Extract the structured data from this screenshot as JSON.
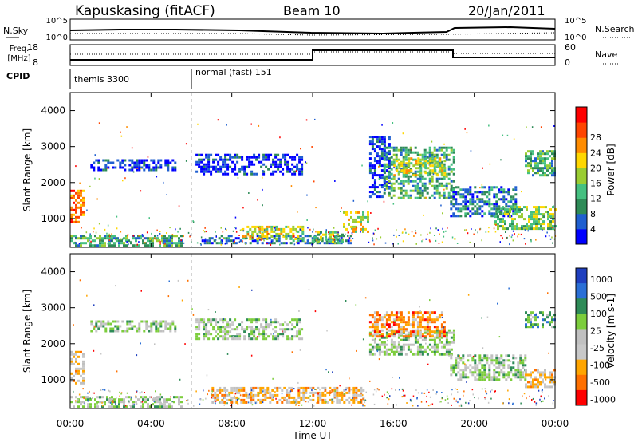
{
  "header": {
    "station": "Kapuskasing (fitACF)",
    "beam": "Beam 10",
    "date": "20/Jan/2011"
  },
  "sky_panel": {
    "left_label": "N.Sky",
    "right_label": "N.Search",
    "left_ticks": [
      "10^5",
      "10^0"
    ],
    "right_ticks": [
      "10^5",
      "10^0"
    ]
  },
  "freq_panel": {
    "left_label_1": "Freq.",
    "left_label_2": "[MHz]",
    "right_label": "Nave",
    "left_ticks": [
      "18",
      "8"
    ],
    "right_ticks": [
      "60",
      "0"
    ]
  },
  "cpid_panel": {
    "label": "CPID",
    "segments": [
      {
        "label": "themis 3300",
        "start_hour": 0,
        "end_hour": 6
      },
      {
        "label": "normal (fast) 151",
        "start_hour": 6,
        "end_hour": 24
      }
    ]
  },
  "colors": {
    "power_scale": [
      "#0000ff",
      "#1f5fd0",
      "#2e8b57",
      "#45c080",
      "#9acd32",
      "#ffd700",
      "#ff8c00",
      "#ff4500",
      "#ff0000"
    ],
    "velocity_scale": [
      "#1f3fbf",
      "#2a6fd6",
      "#2e8b57",
      "#7ccd3c",
      "#c0c0c0",
      "#c8c8c8",
      "#ffa500",
      "#ff7000",
      "#ff0000"
    ]
  },
  "chart_data": [
    {
      "type": "heatmap",
      "title": "Power",
      "xlabel": "Time UT",
      "ylabel": "Slant Range [km]",
      "colorbar_label": "Power [dB]",
      "xlim": [
        0,
        24
      ],
      "ylim": [
        200,
        4500
      ],
      "x_ticks": [
        "00:00",
        "04:00",
        "08:00",
        "12:00",
        "16:00",
        "20:00",
        "00:00"
      ],
      "y_ticks": [
        "1000",
        "2000",
        "3000",
        "4000"
      ],
      "colorbar_ticks": [
        "4",
        "8",
        "12",
        "16",
        "20",
        "24",
        "28"
      ],
      "regions": [
        {
          "t0": 0.0,
          "t1": 0.6,
          "r0": 900,
          "r1": 1800,
          "level": 7
        },
        {
          "t0": 0.0,
          "t1": 5.5,
          "r0": 250,
          "r1": 550,
          "level": 3
        },
        {
          "t0": 1.0,
          "t1": 5.2,
          "r0": 2350,
          "r1": 2650,
          "level": 1
        },
        {
          "t0": 6.2,
          "t1": 11.5,
          "r0": 2250,
          "r1": 2800,
          "level": 1
        },
        {
          "t0": 6.5,
          "t1": 14.0,
          "r0": 300,
          "r1": 550,
          "level": 2
        },
        {
          "t0": 8.5,
          "t1": 11.5,
          "r0": 450,
          "r1": 800,
          "level": 5
        },
        {
          "t0": 12.0,
          "t1": 13.5,
          "r0": 350,
          "r1": 650,
          "level": 4
        },
        {
          "t0": 13.5,
          "t1": 14.8,
          "r0": 650,
          "r1": 1200,
          "level": 5
        },
        {
          "t0": 14.8,
          "t1": 15.8,
          "r0": 1600,
          "r1": 3300,
          "level": 1
        },
        {
          "t0": 15.5,
          "t1": 19.0,
          "r0": 1600,
          "r1": 3000,
          "level": 3
        },
        {
          "t0": 16.0,
          "t1": 18.5,
          "r0": 2200,
          "r1": 2700,
          "level": 5
        },
        {
          "t0": 18.8,
          "t1": 22.0,
          "r0": 1100,
          "r1": 1900,
          "level": 2
        },
        {
          "t0": 21.0,
          "t1": 24.0,
          "r0": 750,
          "r1": 1350,
          "level": 4
        },
        {
          "t0": 22.5,
          "t1": 24.0,
          "r0": 2200,
          "r1": 2900,
          "level": 3
        }
      ]
    },
    {
      "type": "heatmap",
      "title": "Velocity",
      "xlabel": "Time UT",
      "ylabel": "Slant Range [km]",
      "colorbar_label": "Velocity [m s-1]",
      "xlim": [
        0,
        24
      ],
      "ylim": [
        200,
        4500
      ],
      "x_ticks": [
        "00:00",
        "04:00",
        "08:00",
        "12:00",
        "16:00",
        "20:00",
        "00:00"
      ],
      "y_ticks": [
        "1000",
        "2000",
        "3000",
        "4000"
      ],
      "colorbar_ticks": [
        "1000",
        "500",
        "100",
        "25",
        "-25",
        "-100",
        "-500",
        "-1000"
      ],
      "regions": [
        {
          "t0": 0.0,
          "t1": 0.6,
          "r0": 900,
          "r1": 1800,
          "level": 6
        },
        {
          "t0": 0.0,
          "t1": 5.5,
          "r0": 250,
          "r1": 550,
          "level": 4
        },
        {
          "t0": 1.0,
          "t1": 5.2,
          "r0": 2350,
          "r1": 2650,
          "level": 4
        },
        {
          "t0": 6.2,
          "t1": 11.5,
          "r0": 2150,
          "r1": 2700,
          "level": 4
        },
        {
          "t0": 7.0,
          "t1": 14.5,
          "r0": 400,
          "r1": 800,
          "level": 6
        },
        {
          "t0": 14.8,
          "t1": 19.0,
          "r0": 1700,
          "r1": 2400,
          "level": 4
        },
        {
          "t0": 14.8,
          "t1": 18.5,
          "r0": 2200,
          "r1": 2900,
          "level": 7
        },
        {
          "t0": 18.8,
          "t1": 22.5,
          "r0": 1000,
          "r1": 1700,
          "level": 4
        },
        {
          "t0": 22.5,
          "t1": 24.0,
          "r0": 2500,
          "r1": 2900,
          "level": 3
        },
        {
          "t0": 22.5,
          "t1": 24.0,
          "r0": 800,
          "r1": 1300,
          "level": 6
        }
      ]
    }
  ]
}
